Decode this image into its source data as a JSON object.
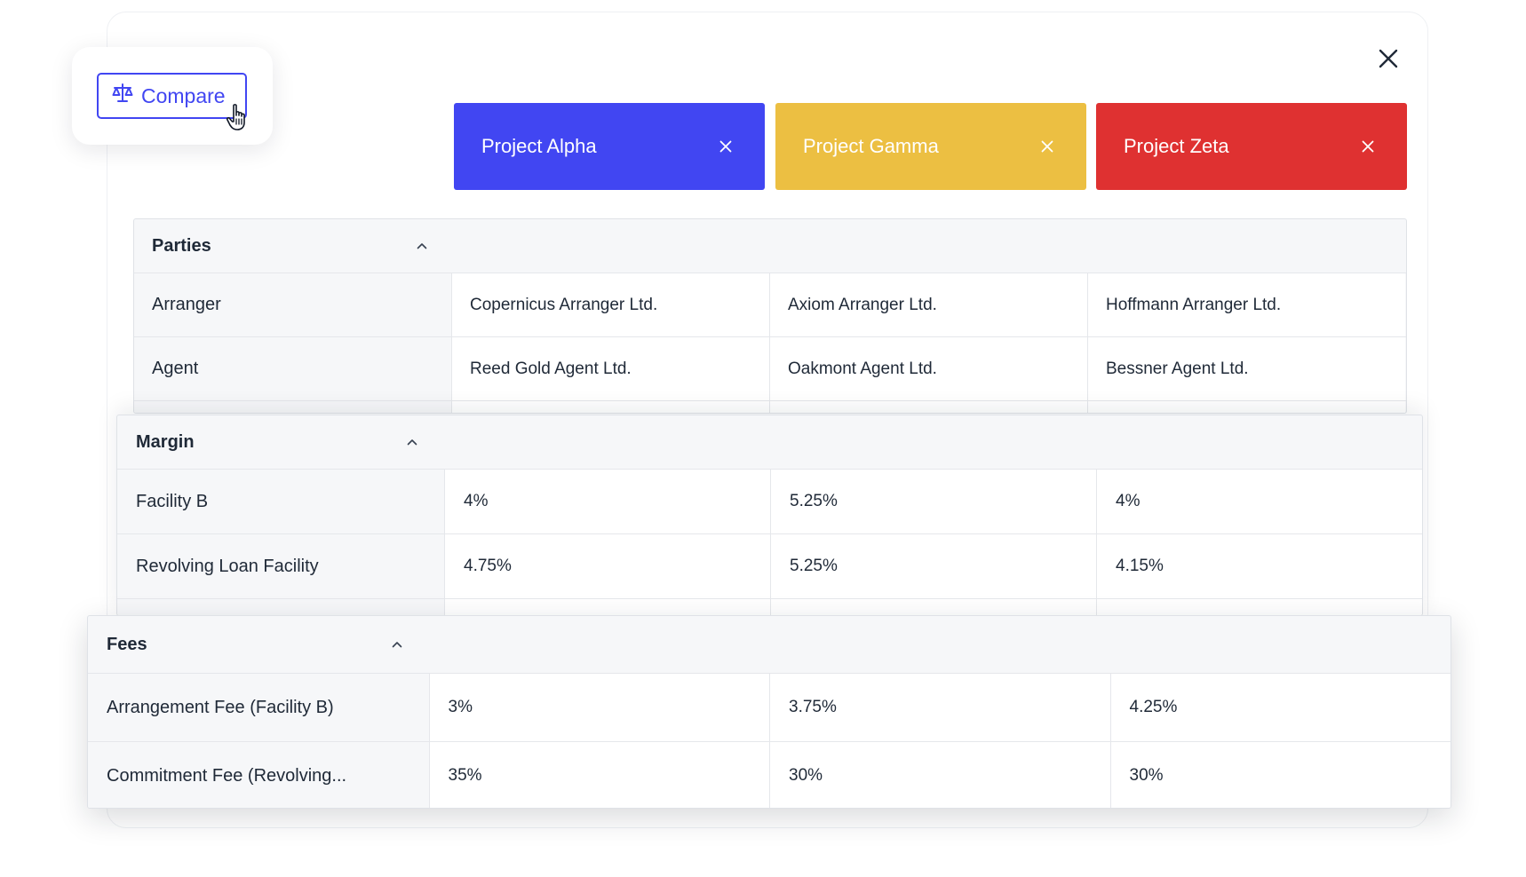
{
  "compare_button": {
    "label": "Compare",
    "icon": "scale-icon"
  },
  "projects": [
    {
      "name": "Project Alpha",
      "color": "#4146f2"
    },
    {
      "name": "Project Gamma",
      "color": "#ecbf42"
    },
    {
      "name": "Project Zeta",
      "color": "#df3131"
    }
  ],
  "sections": [
    {
      "title": "Parties",
      "rows": [
        {
          "label": "Arranger",
          "values": [
            "Copernicus Arranger Ltd.",
            "Axiom Arranger Ltd.",
            "Hoffmann Arranger Ltd."
          ]
        },
        {
          "label": "Agent",
          "values": [
            "Reed Gold Agent Ltd.",
            "Oakmont Agent Ltd.",
            "Bessner Agent Ltd."
          ]
        }
      ]
    },
    {
      "title": "Margin",
      "rows": [
        {
          "label": "Facility B",
          "values": [
            "4%",
            "5.25%",
            "4%"
          ]
        },
        {
          "label": "Revolving Loan Facility",
          "values": [
            "4.75%",
            "5.25%",
            "4.15%"
          ]
        }
      ]
    },
    {
      "title": "Fees",
      "rows": [
        {
          "label": "Arrangement Fee (Facility B)",
          "values": [
            "3%",
            "3.75%",
            "4.25%"
          ]
        },
        {
          "label": "Commitment Fee (Revolving...",
          "values": [
            "35%",
            "30%",
            "30%"
          ]
        }
      ]
    }
  ],
  "colors": {
    "accent": "#4146f2",
    "border": "#dfe2e7",
    "label_bg": "#f6f7f9"
  }
}
